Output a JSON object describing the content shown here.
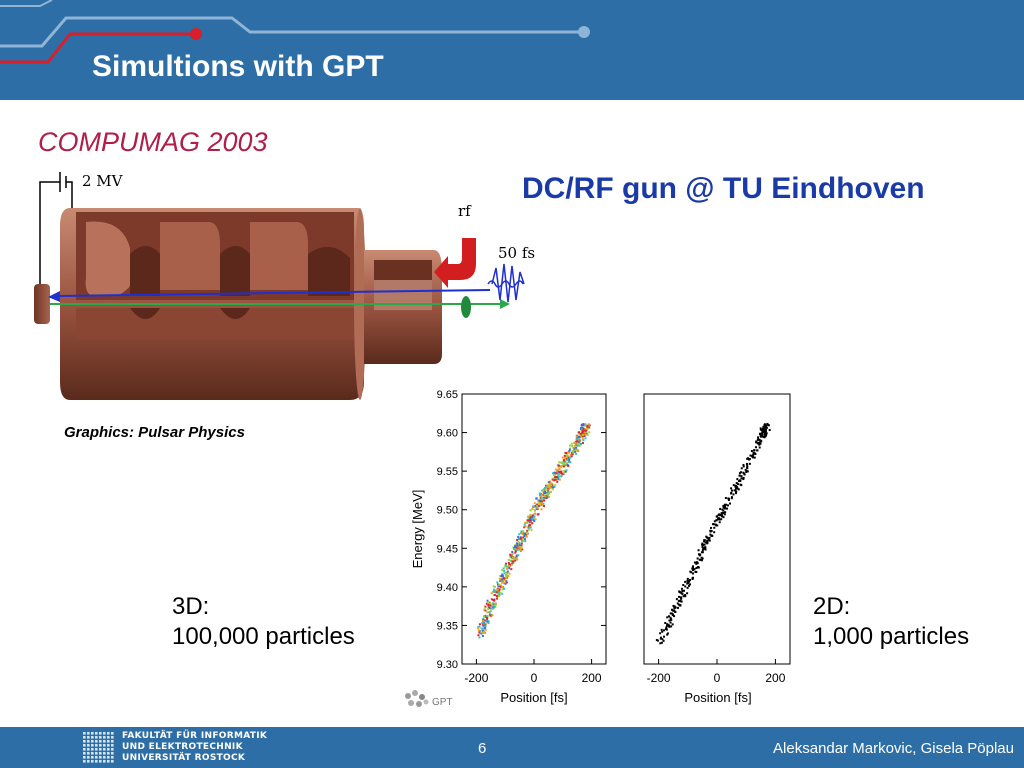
{
  "slide": {
    "title": "Simultions with GPT",
    "subtitle": "COMPUMAG 2003",
    "gun_title": "DC/RF gun  @ TU Eindhoven",
    "credit": "Graphics: Pulsar Physics"
  },
  "gun_figure": {
    "voltage_label": "2 MV",
    "rf_label": "rf",
    "pulse_label": "50 fs"
  },
  "captions": {
    "left_line1": "3D:",
    "left_line2": "100,000 particles",
    "right_line1": "2D:",
    "right_line2": "1,000 particles"
  },
  "plots": {
    "ylabel": "Energy [MeV]",
    "xlabel": "Position [fs]",
    "yticks": [
      "9.65",
      "9.60",
      "9.55",
      "9.50",
      "9.45",
      "9.40",
      "9.35",
      "9.30"
    ],
    "xticks": [
      "-200",
      "0",
      "200"
    ],
    "gpt_logo_text": "GPT"
  },
  "chart_data": [
    {
      "type": "scatter",
      "title": "",
      "xlabel": "Position [fs]",
      "ylabel": "Energy [MeV]",
      "xlim": [
        -250,
        250
      ],
      "ylim": [
        9.3,
        9.65
      ],
      "series": [
        {
          "values_xy": [
            [
              -190,
              9.34
            ],
            [
              -150,
              9.38
            ],
            [
              -100,
              9.42
            ],
            [
              -50,
              9.46
            ],
            [
              0,
              9.5
            ],
            [
              50,
              9.53
            ],
            [
              100,
              9.56
            ],
            [
              150,
              9.59
            ],
            [
              180,
              9.61
            ]
          ]
        }
      ]
    },
    {
      "type": "scatter",
      "title": "",
      "xlabel": "Position [fs]",
      "ylabel": "",
      "xlim": [
        -250,
        250
      ],
      "ylim": [
        9.3,
        9.65
      ],
      "series": [
        {
          "values_xy": [
            [
              -200,
              9.33
            ],
            [
              -150,
              9.37
            ],
            [
              -100,
              9.41
            ],
            [
              -50,
              9.45
            ],
            [
              0,
              9.49
            ],
            [
              50,
              9.52
            ],
            [
              100,
              9.56
            ],
            [
              150,
              9.6
            ],
            [
              170,
              9.61
            ]
          ]
        }
      ]
    }
  ],
  "footer": {
    "inst_line1": "FAKULTÄT FÜR INFORMATIK",
    "inst_line2": "UND ELEKTROTECHNIK",
    "inst_line3": "UNIVERSITÄT ROSTOCK",
    "page_number": "6",
    "authors": "Aleksandar Markovic, Gisela Pöplau"
  },
  "colors": {
    "header_bg": "#2e6ea6",
    "title_red": "#b01e4a",
    "gun_title_blue": "#1a3aa8",
    "circuit_red": "#d7202a",
    "circuit_light": "#8fb4d6"
  }
}
